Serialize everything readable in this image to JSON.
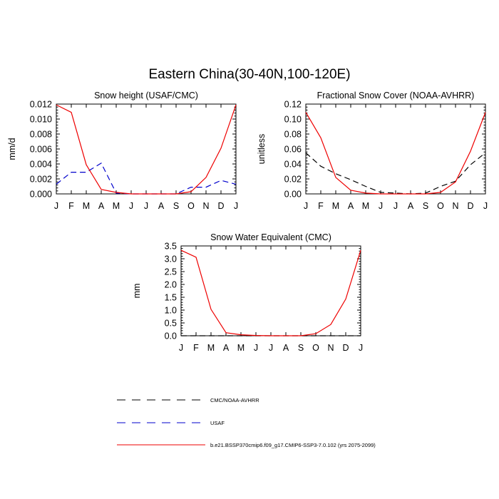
{
  "figure": {
    "title": "Eastern China(30-40N,100-120E)"
  },
  "legend": {
    "entries": [
      {
        "label": "CMC/NOAA-AVHRR",
        "color": "#000000",
        "dash": "dashed"
      },
      {
        "label": "USAF",
        "color": "#0000cc",
        "dash": "dashed"
      },
      {
        "label": "b.e21.BSSP370cmip6.f09_g17.CMIP6-SSP3-7.0.102 (yrs 2075-2099)",
        "color": "#ee0000",
        "dash": "solid"
      }
    ]
  },
  "chart_data": [
    {
      "type": "line",
      "title": "Snow height (USAF/CMC)",
      "xlabel": "",
      "ylabel": "mm/d",
      "categories": [
        "J",
        "F",
        "M",
        "A",
        "M",
        "J",
        "J",
        "A",
        "S",
        "O",
        "N",
        "D",
        "J"
      ],
      "ylim": [
        0,
        0.012
      ],
      "yticks": [
        "0.000",
        "0.002",
        "0.004",
        "0.006",
        "0.008",
        "0.010",
        "0.012"
      ],
      "ytick_values": [
        0,
        0.002,
        0.004,
        0.006,
        0.008,
        0.01,
        0.012
      ],
      "series": [
        {
          "name": "USAF",
          "color": "#0000cc",
          "dash": "dashed",
          "values": [
            0.0013,
            0.0029,
            0.0029,
            0.0041,
            0.0001,
            0,
            0,
            0,
            0,
            0.0009,
            0.0009,
            0.0018,
            0.0013
          ]
        },
        {
          "name": "b.e21.BSSP370cmip6.f09_g17.CMIP6-SSP3-7.0.102 (yrs 2075-2099)",
          "color": "#ee0000",
          "dash": "solid",
          "values": [
            0.0119,
            0.0109,
            0.0039,
            0.0006,
            0.0002,
            0,
            0,
            0,
            0,
            0.0003,
            0.0022,
            0.0061,
            0.0119
          ]
        }
      ]
    },
    {
      "type": "line",
      "title": "Fractional Snow Cover (NOAA-AVHRR)",
      "xlabel": "",
      "ylabel": "unitless",
      "categories": [
        "J",
        "F",
        "M",
        "A",
        "M",
        "J",
        "J",
        "A",
        "S",
        "O",
        "N",
        "D",
        "J"
      ],
      "ylim": [
        0,
        0.12
      ],
      "yticks": [
        "0.00",
        "0.02",
        "0.04",
        "0.06",
        "0.08",
        "0.10",
        "0.12"
      ],
      "ytick_values": [
        0,
        0.02,
        0.04,
        0.06,
        0.08,
        0.1,
        0.12
      ],
      "series": [
        {
          "name": "CMC/NOAA-AVHRR",
          "color": "#000000",
          "dash": "dashed",
          "values": [
            0.055,
            0.037,
            0.027,
            0.019,
            0.01,
            0.002,
            0.001,
            0,
            0.001,
            0.01,
            0.017,
            0.039,
            0.055
          ]
        },
        {
          "name": "b.e21.BSSP370cmip6.f09_g17.CMIP6-SSP3-7.0.102 (yrs 2075-2099)",
          "color": "#ee0000",
          "dash": "solid",
          "values": [
            0.109,
            0.075,
            0.022,
            0.005,
            0.001,
            0,
            0,
            0,
            0,
            0.002,
            0.016,
            0.057,
            0.109
          ]
        }
      ]
    },
    {
      "type": "line",
      "title": "Snow Water Equivalent (CMC)",
      "xlabel": "",
      "ylabel": "mm",
      "categories": [
        "J",
        "F",
        "M",
        "A",
        "M",
        "J",
        "J",
        "A",
        "S",
        "O",
        "N",
        "D",
        "J"
      ],
      "ylim": [
        0,
        3.5
      ],
      "yticks": [
        "0.0",
        "0.5",
        "1.0",
        "1.5",
        "2.0",
        "2.5",
        "3.0",
        "3.5"
      ],
      "ytick_values": [
        0,
        0.5,
        1,
        1.5,
        2,
        2.5,
        3,
        3.5
      ],
      "series": [
        {
          "name": "CMC/NOAA-AVHRR",
          "color": "#000000",
          "dash": "dashed",
          "values": [
            0,
            0,
            0,
            0,
            0,
            0,
            0,
            0,
            0,
            0,
            0,
            0,
            0
          ]
        },
        {
          "name": "b.e21.BSSP370cmip6.f09_g17.CMIP6-SSP3-7.0.102 (yrs 2075-2099)",
          "color": "#ee0000",
          "dash": "solid",
          "values": [
            3.33,
            3.06,
            1.03,
            0.12,
            0.04,
            0.01,
            0,
            0,
            0,
            0.08,
            0.44,
            1.43,
            3.33
          ]
        }
      ]
    }
  ]
}
